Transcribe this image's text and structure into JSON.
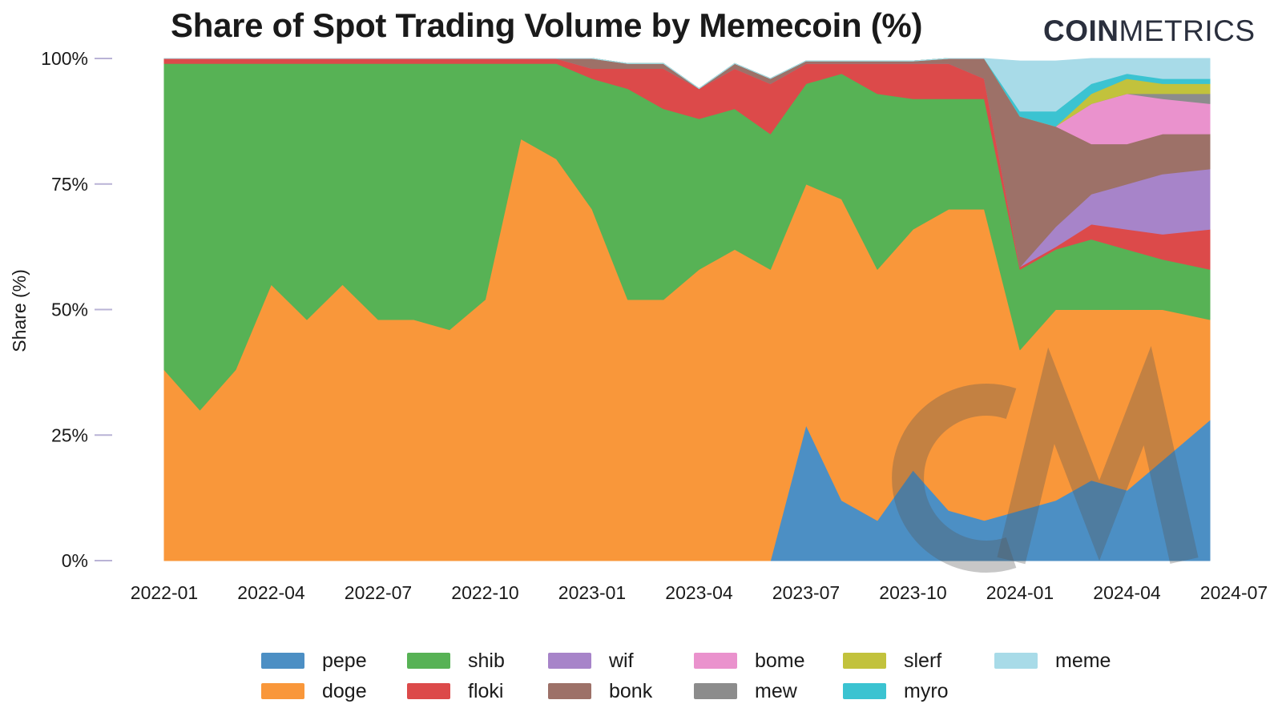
{
  "title": "Share of Spot Trading Volume by Memecoin (%)",
  "logo": {
    "bold": "COIN",
    "thin": "METRICS"
  },
  "chart_data": {
    "type": "area",
    "stacked": true,
    "title": "Share of Spot Trading Volume by Memecoin (%)",
    "ylabel": "Share (%)",
    "xlabel": "",
    "ylim": [
      0,
      100
    ],
    "yticks": [
      0,
      25,
      50,
      75,
      100
    ],
    "ytick_labels": [
      "0%",
      "25%",
      "50%",
      "75%",
      "100%"
    ],
    "x_range": [
      "2022-01",
      "2024-06-25"
    ],
    "xtick_labels": [
      "2022-01",
      "2022-04",
      "2022-07",
      "2022-10",
      "2023-01",
      "2023-04",
      "2023-07",
      "2023-10",
      "2024-01",
      "2024-04",
      "2024-07"
    ],
    "x": [
      "2022-01",
      "2022-02",
      "2022-03",
      "2022-04",
      "2022-05",
      "2022-06",
      "2022-07",
      "2022-08",
      "2022-09",
      "2022-10",
      "2022-11",
      "2022-12",
      "2023-01",
      "2023-02",
      "2023-03",
      "2023-04",
      "2023-05",
      "2023-06",
      "2023-07",
      "2023-08",
      "2023-09",
      "2023-10",
      "2023-11",
      "2023-12",
      "2024-01",
      "2024-02",
      "2024-03",
      "2024-04",
      "2024-05",
      "2024-06"
    ],
    "series": [
      {
        "name": "pepe",
        "color": "#4c8fc4",
        "values": [
          0,
          0,
          0,
          0,
          0,
          0,
          0,
          0,
          0,
          0,
          0,
          0,
          0,
          0,
          0,
          0,
          0,
          0,
          27,
          12,
          8,
          18,
          10,
          8,
          10,
          12,
          16,
          14,
          20,
          28
        ]
      },
      {
        "name": "doge",
        "color": "#f9973a",
        "values": [
          38,
          30,
          38,
          55,
          48,
          55,
          48,
          48,
          46,
          52,
          84,
          80,
          70,
          52,
          52,
          58,
          62,
          58,
          48,
          60,
          50,
          48,
          60,
          62,
          32,
          38,
          34,
          36,
          30,
          20
        ]
      },
      {
        "name": "shib",
        "color": "#57b255",
        "values": [
          61,
          69,
          61,
          44,
          51,
          44,
          51,
          51,
          53,
          47,
          15,
          19,
          26,
          42,
          38,
          30,
          28,
          27,
          20,
          25,
          35,
          26,
          22,
          22,
          16,
          12,
          14,
          12,
          10,
          10
        ]
      },
      {
        "name": "floki",
        "color": "#dc4a4a",
        "values": [
          1,
          1,
          1,
          1,
          1,
          1,
          1,
          1,
          1,
          1,
          1,
          1,
          2,
          4,
          8,
          6,
          8,
          10,
          4,
          2,
          6,
          7,
          7,
          4,
          0.5,
          0.5,
          3,
          4,
          5,
          8
        ]
      },
      {
        "name": "wif",
        "color": "#a784c9",
        "values": [
          0,
          0,
          0,
          0,
          0,
          0,
          0,
          0,
          0,
          0,
          0,
          0,
          0,
          0,
          0,
          0,
          0,
          0,
          0,
          0,
          0,
          0,
          0,
          0,
          0,
          4,
          6,
          9,
          12,
          12
        ]
      },
      {
        "name": "bonk",
        "color": "#9d7168",
        "values": [
          0,
          0,
          0,
          0,
          0,
          0,
          0,
          0,
          0,
          0,
          0,
          0,
          2,
          1,
          1,
          0,
          1,
          1,
          0.5,
          0.5,
          0.5,
          0.5,
          1,
          4,
          30,
          20,
          10,
          8,
          8,
          7
        ]
      },
      {
        "name": "bome",
        "color": "#ea92cd",
        "values": [
          0,
          0,
          0,
          0,
          0,
          0,
          0,
          0,
          0,
          0,
          0,
          0,
          0,
          0,
          0,
          0,
          0,
          0,
          0,
          0,
          0,
          0,
          0,
          0,
          0,
          0,
          8,
          10,
          7,
          6
        ]
      },
      {
        "name": "mew",
        "color": "#8c8c8c",
        "values": [
          0,
          0,
          0,
          0,
          0,
          0,
          0,
          0,
          0,
          0,
          0,
          0,
          0,
          0,
          0,
          0,
          0,
          0,
          0,
          0,
          0,
          0,
          0,
          0,
          0,
          0,
          0,
          0,
          1,
          2
        ]
      },
      {
        "name": "slerf",
        "color": "#c2c23c",
        "values": [
          0,
          0,
          0,
          0,
          0,
          0,
          0,
          0,
          0,
          0,
          0,
          0,
          0,
          0,
          0,
          0,
          0,
          0,
          0,
          0,
          0,
          0,
          0,
          0,
          0,
          0,
          2,
          3,
          2,
          2
        ]
      },
      {
        "name": "myro",
        "color": "#3bc3d1",
        "values": [
          0,
          0,
          0,
          0,
          0,
          0,
          0,
          0,
          0,
          0,
          0,
          0,
          0,
          0,
          0,
          0,
          0,
          0,
          0,
          0,
          0,
          0,
          0,
          0,
          1,
          3,
          2,
          1,
          1,
          1
        ]
      },
      {
        "name": "meme",
        "color": "#a8dbe8",
        "values": [
          0,
          0,
          0,
          0,
          0,
          0,
          0,
          0,
          0,
          0,
          0,
          0,
          0,
          0,
          0,
          0,
          0,
          0,
          0,
          0,
          0,
          0,
          0,
          0,
          10,
          10,
          5,
          3,
          4,
          4
        ]
      }
    ],
    "legend_position": "bottom",
    "grid": false
  },
  "legend": [
    {
      "label": "pepe",
      "color": "#4c8fc4"
    },
    {
      "label": "doge",
      "color": "#f9973a"
    },
    {
      "label": "shib",
      "color": "#57b255"
    },
    {
      "label": "floki",
      "color": "#dc4a4a"
    },
    {
      "label": "wif",
      "color": "#a784c9"
    },
    {
      "label": "bonk",
      "color": "#9d7168"
    },
    {
      "label": "bome",
      "color": "#ea92cd"
    },
    {
      "label": "mew",
      "color": "#8c8c8c"
    },
    {
      "label": "slerf",
      "color": "#c2c23c"
    },
    {
      "label": "myro",
      "color": "#3bc3d1"
    },
    {
      "label": "meme",
      "color": "#a8dbe8"
    }
  ]
}
